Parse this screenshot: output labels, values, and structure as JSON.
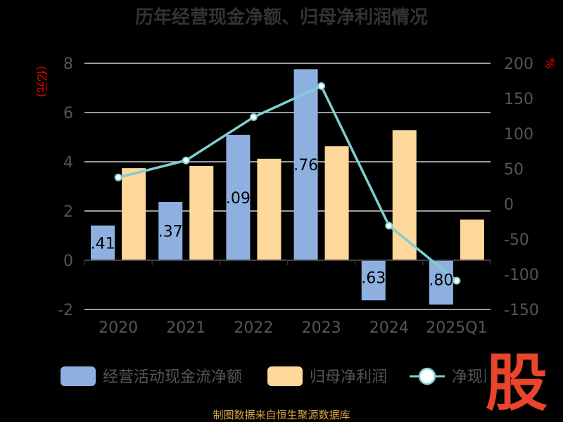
{
  "chart_data": {
    "type": "bar",
    "title": "历年经营现金净额、归母净利润情况",
    "categories": [
      "2020",
      "2021",
      "2022",
      "2023",
      "2024",
      "2025Q1"
    ],
    "left_unit": "(亿元)",
    "right_unit": "%",
    "left_ticks": [
      "-2",
      "0",
      "2",
      "4",
      "6",
      "8"
    ],
    "right_ticks": [
      "-150",
      "-100",
      "-50",
      "0",
      "50",
      "100",
      "150",
      "200"
    ],
    "ylim": [
      -2,
      8
    ],
    "y2lim": [
      -150,
      200
    ],
    "grid": true,
    "legend_position": "bottom",
    "series": [
      {
        "name": "经营活动现金流净额",
        "kind": "bar",
        "color": "#8eb0e0",
        "values": [
          1.41,
          2.37,
          5.09,
          7.76,
          -1.63,
          -1.8
        ],
        "labels": [
          ".41",
          ".37",
          ".09",
          ".76",
          ".63",
          ".80"
        ]
      },
      {
        "name": "归母净利润",
        "kind": "bar",
        "color": "#fdd89a",
        "values": [
          3.74,
          3.83,
          4.12,
          4.63,
          5.28,
          1.65
        ]
      },
      {
        "name": "净现比",
        "kind": "line",
        "axis": "right",
        "color": "#7fcfcf",
        "values": [
          37.7,
          61.9,
          123.5,
          167.6,
          -30.9,
          -109.1
        ]
      }
    ]
  },
  "legend": {
    "items": [
      {
        "label": "经营活动现金流净额"
      },
      {
        "label": "归母净利润"
      },
      {
        "label": "净现比"
      }
    ]
  },
  "footer": {
    "source": "制图数据来自恒生聚源数据库"
  },
  "watermark": {
    "text": "股"
  }
}
